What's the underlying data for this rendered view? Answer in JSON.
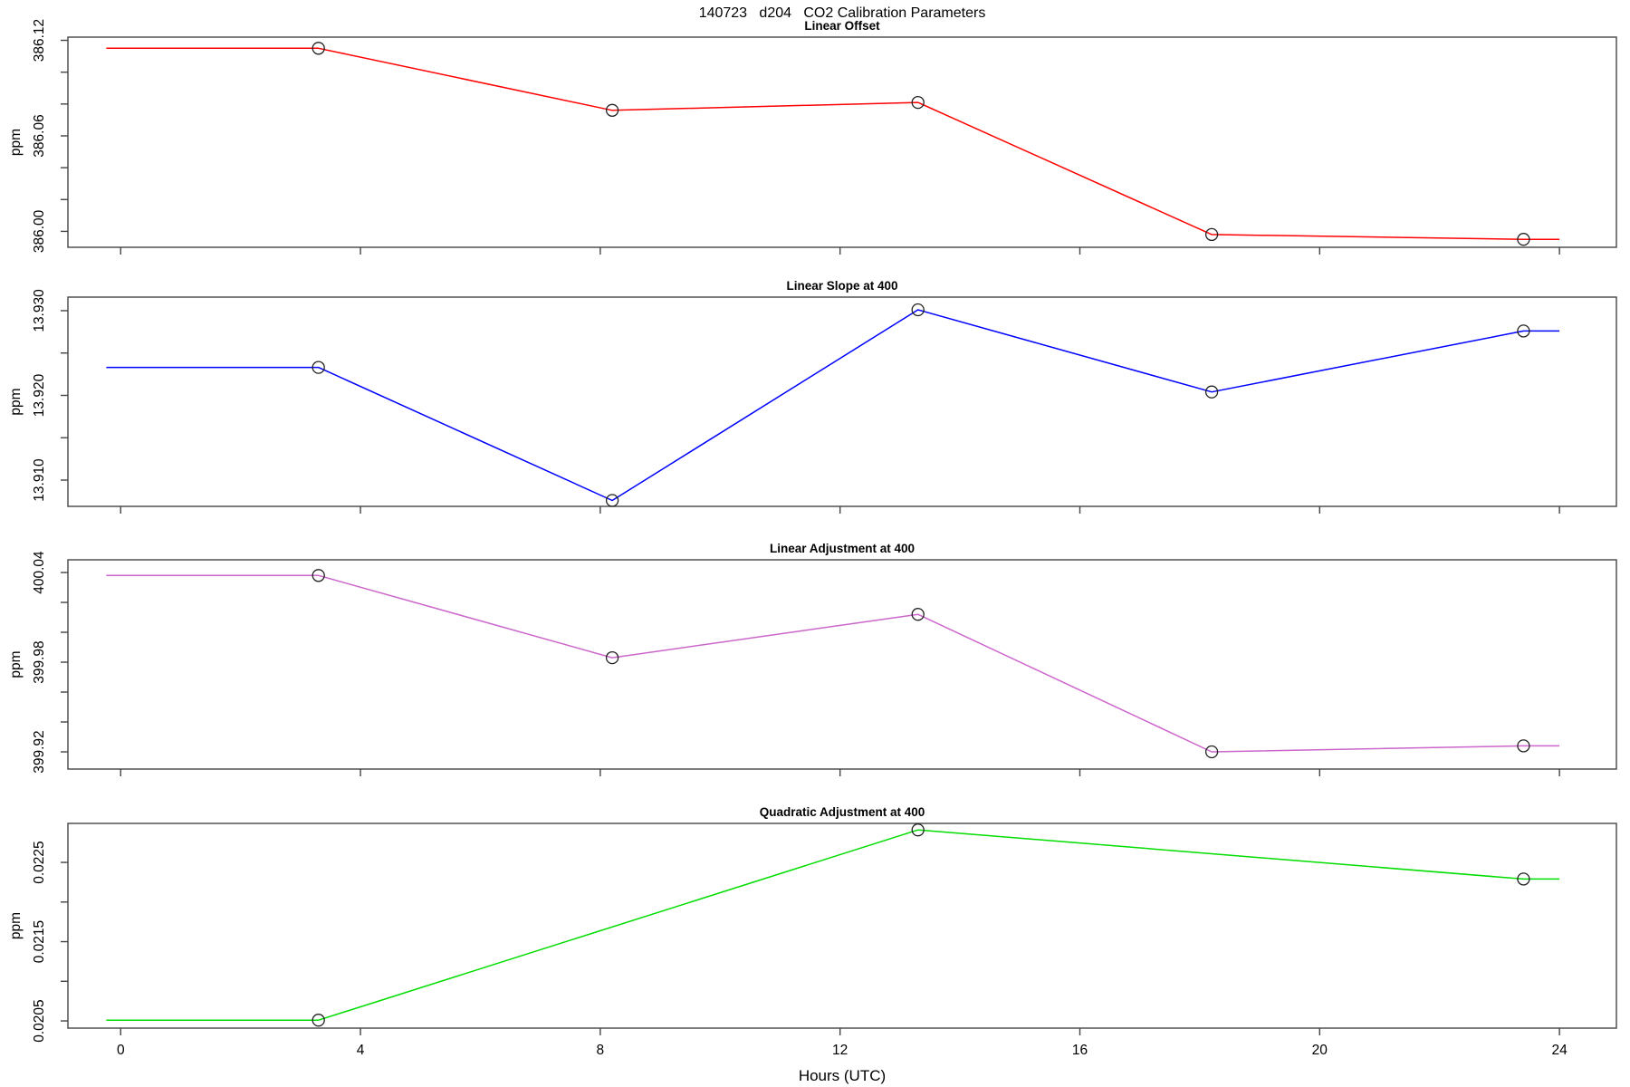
{
  "main_title": "140723   d204   CO2 Calibration Parameters",
  "chart_data": {
    "type": "line",
    "title": "140723   d204   CO2 Calibration Parameters",
    "x_axis": {
      "label": "Hours (UTC)",
      "ticks": [
        0,
        4,
        8,
        12,
        16,
        20,
        24
      ],
      "range": [
        -0.88,
        24.95
      ]
    },
    "marker_style": "open-circle",
    "marker_color": "#222222",
    "panels": [
      {
        "title": "Linear Offset",
        "ylabel": "ppm",
        "color": "#ff0000",
        "ylim": [
          385.99,
          386.122
        ],
        "ytick_values": [
          386.0,
          386.02,
          386.04,
          386.06,
          386.08,
          386.1,
          386.12
        ],
        "ytick_labels": [
          "386.00",
          "",
          "",
          "386.06",
          "",
          "",
          "386.12"
        ],
        "cal_points": {
          "x": [
            3.3,
            8.2,
            13.3,
            18.2,
            23.4
          ],
          "y": [
            386.115,
            386.076,
            386.081,
            385.998,
            385.995
          ]
        },
        "line": {
          "x": [
            -0.24,
            3.3,
            8.2,
            13.3,
            18.2,
            23.4,
            24.0
          ],
          "y": [
            386.115,
            386.115,
            386.076,
            386.081,
            385.998,
            385.995,
            385.995
          ]
        }
      },
      {
        "title": "Linear Slope at 400",
        "ylabel": "ppm",
        "color": "#0000ff",
        "ylim": [
          13.9069,
          13.9316
        ],
        "ytick_values": [
          13.91,
          13.915,
          13.92,
          13.925,
          13.93
        ],
        "ytick_labels": [
          "13.910",
          "",
          "13.920",
          "",
          "13.930"
        ],
        "cal_points": {
          "x": [
            3.3,
            8.2,
            13.3,
            18.2,
            23.4
          ],
          "y": [
            13.9233,
            13.9076,
            13.9301,
            13.9204,
            13.9276
          ]
        },
        "line": {
          "x": [
            -0.24,
            3.3,
            8.2,
            13.3,
            18.2,
            23.4,
            24.0
          ],
          "y": [
            13.9233,
            13.9233,
            13.9076,
            13.9301,
            13.9204,
            13.9276,
            13.9276
          ]
        }
      },
      {
        "title": "Linear Adjustment at 400",
        "ylabel": "ppm",
        "color": "#cc66cc",
        "ylim": [
          399.9085,
          400.0485
        ],
        "ytick_values": [
          399.92,
          399.94,
          399.96,
          399.98,
          400.0,
          400.02,
          400.04
        ],
        "ytick_labels": [
          "399.92",
          "",
          "",
          "399.98",
          "",
          "",
          "400.04"
        ],
        "cal_points": {
          "x": [
            3.3,
            8.2,
            13.3,
            18.2,
            23.4
          ],
          "y": [
            400.038,
            399.983,
            400.012,
            399.92,
            399.924
          ]
        },
        "line": {
          "x": [
            -0.24,
            3.3,
            8.2,
            13.3,
            18.2,
            23.4,
            24.0
          ],
          "y": [
            400.038,
            400.038,
            399.983,
            400.012,
            399.92,
            399.924,
            399.924
          ]
        }
      },
      {
        "title": "Quadratic Adjustment at 400",
        "ylabel": "ppm",
        "color": "#00dd00",
        "ylim": [
          0.020409,
          0.022992
        ],
        "ytick_values": [
          0.0205,
          0.021,
          0.0215,
          0.022,
          0.0225
        ],
        "ytick_labels": [
          "0.0205",
          "",
          "0.0215",
          "",
          "0.0225"
        ],
        "cal_points": {
          "x": [
            3.3,
            13.3,
            23.4
          ],
          "y": [
            0.02051,
            0.02291,
            0.02229
          ]
        },
        "line": {
          "x": [
            -0.24,
            3.3,
            13.3,
            23.4,
            24.0
          ],
          "y": [
            0.02051,
            0.02051,
            0.02291,
            0.02229,
            0.02229
          ]
        }
      }
    ]
  }
}
